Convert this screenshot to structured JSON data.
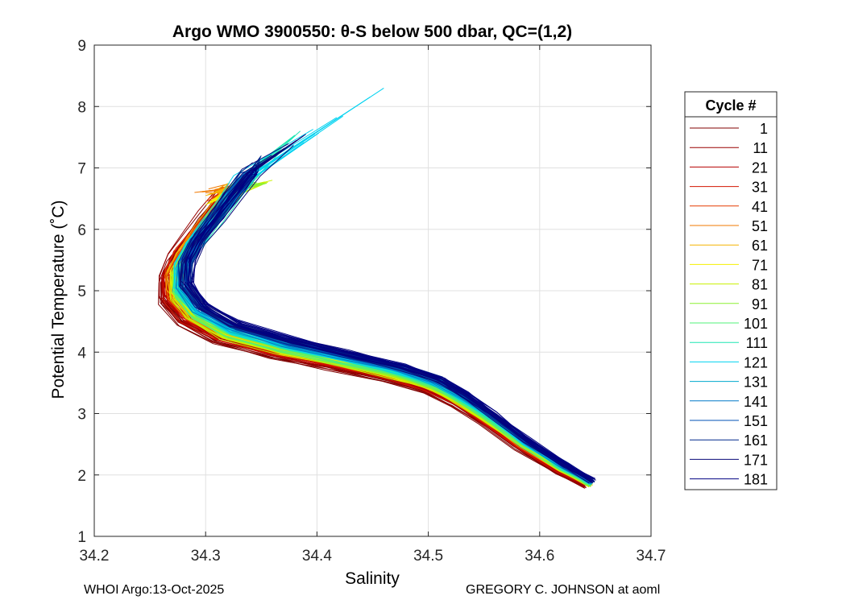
{
  "chart_data": {
    "type": "line",
    "title": "Argo WMO 3900550: θ-S below 500 dbar,  QC=(1,2)",
    "xlabel": "Salinity",
    "ylabel": "Potential Temperature (˚C)",
    "xlim": [
      34.2,
      34.7
    ],
    "ylim": [
      1,
      9
    ],
    "xticks": [
      "34.2",
      "34.3",
      "34.4",
      "34.5",
      "34.6",
      "34.7"
    ],
    "yticks": [
      "1",
      "2",
      "3",
      "4",
      "5",
      "6",
      "7",
      "8",
      "9"
    ],
    "grid": true,
    "legend": {
      "title": "Cycle #",
      "placement": "outside-right",
      "entries": [
        {
          "label": "1",
          "color": "#800000"
        },
        {
          "label": "11",
          "color": "#9a0000"
        },
        {
          "label": "21",
          "color": "#b40000"
        },
        {
          "label": "31",
          "color": "#d21400"
        },
        {
          "label": "41",
          "color": "#e63c00"
        },
        {
          "label": "51",
          "color": "#f07800"
        },
        {
          "label": "61",
          "color": "#f5b400"
        },
        {
          "label": "71",
          "color": "#f5f000"
        },
        {
          "label": "81",
          "color": "#c8f000"
        },
        {
          "label": "91",
          "color": "#8cf032"
        },
        {
          "label": "101",
          "color": "#50f078"
        },
        {
          "label": "111",
          "color": "#1ee6b4"
        },
        {
          "label": "121",
          "color": "#00d2f0"
        },
        {
          "label": "131",
          "color": "#00aacd"
        },
        {
          "label": "141",
          "color": "#0078c8"
        },
        {
          "label": "151",
          "color": "#0050b4"
        },
        {
          "label": "161",
          "color": "#00288c"
        },
        {
          "label": "171",
          "color": "#0a0a78"
        },
        {
          "label": "181",
          "color": "#000082"
        }
      ]
    },
    "profile_shape": {
      "description_points_s_theta": [
        [
          34.645,
          1.85
        ],
        [
          34.62,
          2.1
        ],
        [
          34.585,
          2.5
        ],
        [
          34.555,
          2.9
        ],
        [
          34.53,
          3.2
        ],
        [
          34.505,
          3.45
        ],
        [
          34.47,
          3.65
        ],
        [
          34.42,
          3.85
        ],
        [
          34.37,
          4.05
        ],
        [
          34.32,
          4.3
        ],
        [
          34.29,
          4.6
        ],
        [
          34.275,
          4.95
        ],
        [
          34.275,
          5.3
        ],
        [
          34.285,
          5.65
        ],
        [
          34.3,
          6.0
        ],
        [
          34.315,
          6.35
        ],
        [
          34.33,
          6.7
        ]
      ]
    },
    "series": [
      {
        "name": "1",
        "color": "#800000",
        "s_offset": -0.012,
        "t_offset": -0.12,
        "tip": [
          34.315,
          6.55
        ]
      },
      {
        "name": "11",
        "color": "#9a0000",
        "s_offset": -0.01,
        "t_offset": -0.1,
        "tip": [
          34.32,
          6.7
        ]
      },
      {
        "name": "21",
        "color": "#b40000",
        "s_offset": -0.008,
        "t_offset": -0.08,
        "tip": [
          34.31,
          6.6
        ]
      },
      {
        "name": "31",
        "color": "#d21400",
        "s_offset": -0.006,
        "t_offset": -0.05,
        "tip": [
          34.33,
          6.5
        ]
      },
      {
        "name": "41",
        "color": "#e63c00",
        "s_offset": -0.005,
        "t_offset": -0.03,
        "tip": [
          34.3,
          6.45
        ]
      },
      {
        "name": "51",
        "color": "#f07800",
        "s_offset": -0.004,
        "t_offset": -0.02,
        "tip": [
          34.29,
          6.6
        ]
      },
      {
        "name": "61",
        "color": "#f5b400",
        "s_offset": -0.003,
        "t_offset": -0.01,
        "tip": [
          34.3,
          6.55
        ]
      },
      {
        "name": "71",
        "color": "#f5f000",
        "s_offset": -0.002,
        "t_offset": -0.02,
        "tip": [
          34.3,
          6.4
        ]
      },
      {
        "name": "81",
        "color": "#c8f000",
        "s_offset": -0.002,
        "t_offset": -0.04,
        "tip": [
          34.36,
          6.8
        ]
      },
      {
        "name": "91",
        "color": "#8cf032",
        "s_offset": 0.0,
        "t_offset": -0.01,
        "tip": [
          34.355,
          6.75
        ]
      },
      {
        "name": "101",
        "color": "#50f078",
        "s_offset": 0.001,
        "t_offset": 0.02,
        "tip": [
          34.34,
          6.85
        ]
      },
      {
        "name": "111",
        "color": "#1ee6b4",
        "s_offset": 0.002,
        "t_offset": 0.05,
        "tip": [
          34.385,
          7.6
        ]
      },
      {
        "name": "121",
        "color": "#00d2f0",
        "s_offset": 0.003,
        "t_offset": 0.08,
        "tip": [
          34.46,
          8.3
        ]
      },
      {
        "name": "131",
        "color": "#00aacd",
        "s_offset": 0.004,
        "t_offset": 0.1,
        "tip": [
          34.35,
          7.1
        ]
      },
      {
        "name": "141",
        "color": "#0078c8",
        "s_offset": 0.005,
        "t_offset": 0.12,
        "tip": [
          34.34,
          6.95
        ]
      },
      {
        "name": "151",
        "color": "#0050b4",
        "s_offset": 0.006,
        "t_offset": 0.14,
        "tip": [
          34.345,
          7.0
        ]
      },
      {
        "name": "161",
        "color": "#00288c",
        "s_offset": 0.007,
        "t_offset": 0.16,
        "tip": [
          34.35,
          7.2
        ]
      },
      {
        "name": "171",
        "color": "#0a0a78",
        "s_offset": 0.008,
        "t_offset": 0.17,
        "tip": [
          34.39,
          7.55
        ]
      },
      {
        "name": "181",
        "color": "#000082",
        "s_offset": 0.009,
        "t_offset": 0.18,
        "tip": [
          34.345,
          6.9
        ]
      }
    ]
  },
  "footer": {
    "left": "WHOI Argo:13-Oct-2025",
    "right": "GREGORY C. JOHNSON at aoml"
  }
}
